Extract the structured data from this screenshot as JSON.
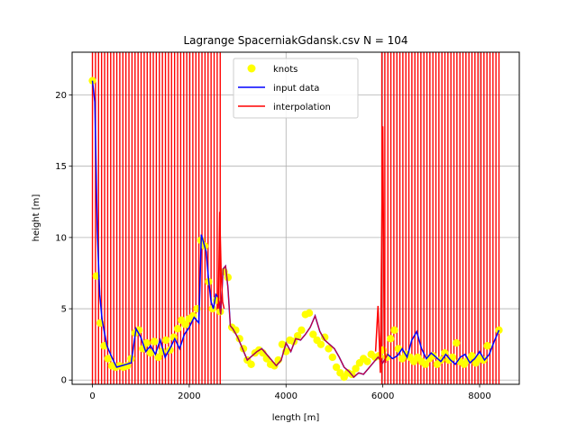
{
  "chart_data": {
    "type": "line",
    "title": "Lagrange SpacerniakGdansk.csv N = 104",
    "xlabel": "length [m]",
    "ylabel": "height [m]",
    "xlim": [
      -420,
      8820
    ],
    "ylim": [
      -0.3,
      23
    ],
    "xticks": [
      0,
      2000,
      4000,
      6000,
      8000
    ],
    "yticks": [
      0,
      5,
      10,
      15,
      20
    ],
    "grid": true,
    "legend_position": "top-center",
    "colors": {
      "knots": "#ffff00",
      "input": "#0000ff",
      "interp": "#ff0000",
      "grid": "#b0b0b0"
    },
    "series": [
      {
        "name": "knots",
        "kind": "scatter"
      },
      {
        "name": "input data",
        "kind": "line"
      },
      {
        "name": "interpolation",
        "kind": "line"
      }
    ],
    "input_profile": {
      "x": [
        0,
        50,
        100,
        150,
        200,
        300,
        400,
        500,
        600,
        700,
        800,
        900,
        1000,
        1100,
        1200,
        1300,
        1400,
        1500,
        1600,
        1700,
        1800,
        1900,
        2000,
        2100,
        2200,
        2250,
        2300,
        2350,
        2400,
        2450,
        2500,
        2550,
        2600,
        2650,
        2700,
        2750,
        2800,
        2850,
        2900,
        3000,
        3100,
        3200,
        3300,
        3400,
        3500,
        3600,
        3700,
        3800,
        3900,
        4000,
        4100,
        4200,
        4300,
        4400,
        4500,
        4600,
        4700,
        4800,
        4900,
        5000,
        5100,
        5200,
        5300,
        5400,
        5500,
        5600,
        5700,
        5800,
        5900,
        6000,
        6100,
        6200,
        6300,
        6400,
        6500,
        6600,
        6700,
        6800,
        6900,
        7000,
        7100,
        7200,
        7300,
        7400,
        7500,
        7600,
        7700,
        7800,
        7900,
        8000,
        8100,
        8200,
        8300,
        8400
      ],
      "y": [
        21,
        19.5,
        10.5,
        6.0,
        4.2,
        2.4,
        1.6,
        0.9,
        1.0,
        1.1,
        1.2,
        3.6,
        3.0,
        2.0,
        2.4,
        1.8,
        2.8,
        1.6,
        2.2,
        2.9,
        2.2,
        3.2,
        3.7,
        4.4,
        4.0,
        10.2,
        9.6,
        9.0,
        7.0,
        5.5,
        5.0,
        6.0,
        5.8,
        4.6,
        7.8,
        8.0,
        6.5,
        3.8,
        3.6,
        3.0,
        2.2,
        1.4,
        1.7,
        2.0,
        2.2,
        1.8,
        1.4,
        1.0,
        1.4,
        2.6,
        2.0,
        2.9,
        2.8,
        3.2,
        3.7,
        4.5,
        3.4,
        2.8,
        2.5,
        2.2,
        1.6,
        0.9,
        0.6,
        0.2,
        0.5,
        0.4,
        0.8,
        1.2,
        1.6,
        1.2,
        1.8,
        1.5,
        1.7,
        2.2,
        1.6,
        2.8,
        3.4,
        2.2,
        1.5,
        1.9,
        1.6,
        1.3,
        1.8,
        1.4,
        1.1,
        1.6,
        1.8,
        1.2,
        1.5,
        2.0,
        1.4,
        1.8,
        2.7,
        3.5
      ]
    },
    "knots": {
      "x": [
        0,
        80,
        160,
        240,
        320,
        400,
        480,
        560,
        640,
        720,
        800,
        880,
        960,
        1040,
        1120,
        1200,
        1280,
        1360,
        1440,
        1520,
        1600,
        1680,
        1760,
        1840,
        1920,
        2000,
        2080,
        2160,
        2240,
        2320,
        2400,
        2480,
        2560,
        2640,
        2720,
        2800,
        2880,
        2960,
        3040,
        3120,
        3200,
        3280,
        3360,
        3440,
        3520,
        3600,
        3680,
        3760,
        3840,
        3920,
        4000,
        4080,
        4160,
        4240,
        4320,
        4400,
        4480,
        4560,
        4640,
        4720,
        4800,
        4880,
        4960,
        5040,
        5120,
        5200,
        5280,
        5360,
        5440,
        5520,
        5600,
        5680,
        5760,
        5840,
        5920,
        6000,
        6080,
        6160,
        6240,
        6320,
        6400,
        6480,
        6560,
        6640,
        6720,
        6800,
        6880,
        6960,
        7040,
        7120,
        7200,
        7280,
        7360,
        7440,
        7520,
        7600,
        7680,
        7760,
        7840,
        7920,
        8000,
        8080,
        8160,
        8400
      ],
      "y": [
        21.0,
        7.3,
        4.0,
        2.4,
        1.5,
        1.0,
        0.9,
        1.0,
        0.9,
        1.0,
        1.5,
        3.3,
        3.5,
        2.2,
        2.6,
        1.9,
        2.7,
        1.6,
        2.0,
        2.8,
        2.1,
        3.0,
        3.6,
        4.2,
        3.9,
        4.3,
        4.5,
        5.0,
        9.8,
        9.4,
        6.9,
        5.0,
        5.6,
        4.8,
        7.6,
        7.2,
        3.7,
        3.5,
        2.9,
        2.2,
        1.4,
        1.1,
        1.9,
        2.1,
        1.9,
        1.5,
        1.1,
        1.0,
        1.4,
        2.5,
        2.0,
        2.8,
        2.7,
        3.1,
        3.5,
        4.6,
        4.7,
        3.2,
        2.8,
        2.5,
        3.0,
        2.2,
        1.6,
        0.9,
        0.5,
        0.2,
        0.5,
        0.4,
        0.8,
        1.2,
        1.5,
        1.3,
        1.8,
        1.6,
        1.7,
        2.1,
        1.6,
        2.9,
        3.5,
        2.2,
        1.5,
        1.8,
        1.6,
        1.3,
        1.6,
        1.3,
        1.1,
        1.5,
        1.7,
        1.1,
        1.4,
        1.9,
        1.4,
        1.6,
        2.6,
        1.3,
        1.1,
        1.4,
        1.7,
        1.2,
        1.5,
        1.4,
        2.4,
        3.5
      ]
    },
    "interpolation_profile": {
      "x": [
        2600,
        2630,
        2660,
        2690,
        2720,
        5850,
        5900,
        5950,
        6000,
        6030,
        6060
      ],
      "y": [
        5.0,
        11.8,
        7.5,
        5.5,
        5.0,
        2.0,
        5.2,
        0.5,
        17.8,
        2.5,
        1.2
      ]
    },
    "oscillation_bands": [
      {
        "from": 0,
        "to": 2640,
        "bottom": -0.3,
        "top": 23
      },
      {
        "from": 5980,
        "to": 8400,
        "bottom": -0.3,
        "top": 23
      }
    ]
  }
}
